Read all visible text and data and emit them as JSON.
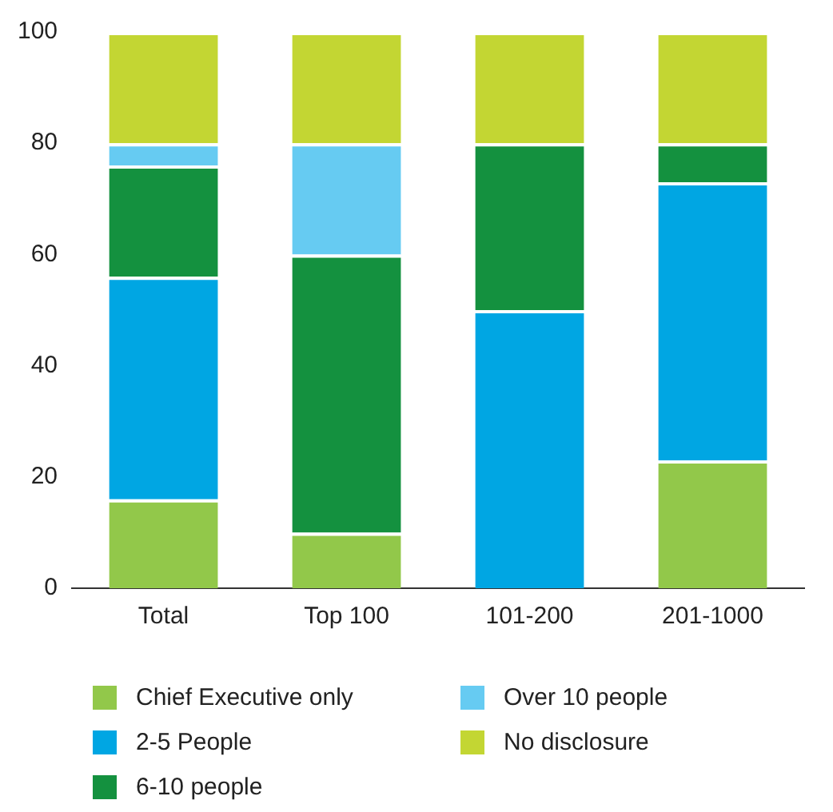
{
  "chart_data": {
    "type": "bar",
    "stacked": true,
    "categories": [
      "Total",
      "Top 100",
      "101-200",
      "201-1000"
    ],
    "series": [
      {
        "name": "Chief Executive only",
        "color": "#92c84a",
        "values": [
          16,
          10,
          0,
          23
        ]
      },
      {
        "name": "2-5 People",
        "color": "#00a6e3",
        "values": [
          40,
          0,
          50,
          50
        ]
      },
      {
        "name": "6-10 people",
        "color": "#14913f",
        "values": [
          20,
          50,
          30,
          7
        ]
      },
      {
        "name": "Over 10 people",
        "color": "#66cbf2",
        "values": [
          4,
          20,
          0,
          0
        ]
      },
      {
        "name": "No disclosure",
        "color": "#c3d633",
        "values": [
          20,
          20,
          20,
          20
        ]
      }
    ],
    "ylim": [
      0,
      100
    ],
    "yticks": [
      0,
      20,
      40,
      60,
      80,
      100
    ],
    "grid": false,
    "legend": "bottom"
  }
}
